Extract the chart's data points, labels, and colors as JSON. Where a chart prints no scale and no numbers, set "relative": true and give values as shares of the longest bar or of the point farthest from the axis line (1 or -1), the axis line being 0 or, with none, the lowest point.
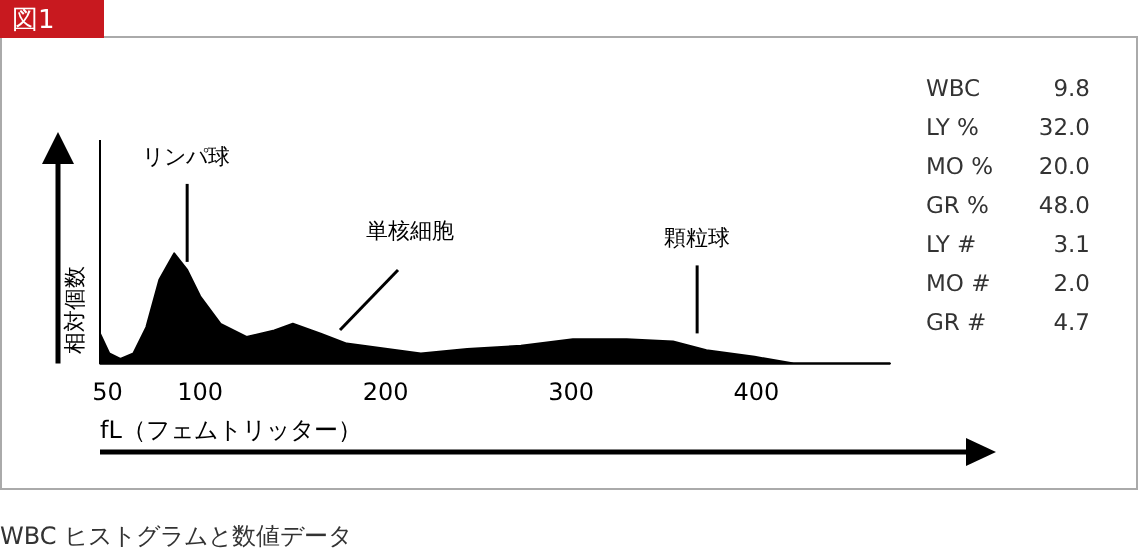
{
  "chart_data": {
    "type": "area",
    "relative": true,
    "title": "図1",
    "xlabel": "fL（フェムトリッター）",
    "ylabel": "相対個数",
    "xlim": [
      46,
      472
    ],
    "xticks": [
      50,
      100,
      200,
      300,
      400
    ],
    "x": [
      46,
      51,
      57,
      64,
      71,
      78,
      86,
      93,
      100,
      111,
      125,
      140,
      150,
      165,
      179,
      201,
      219,
      244,
      273,
      301,
      330,
      355,
      373,
      399,
      420,
      472
    ],
    "series": [
      {
        "color": "#000000",
        "values": [
          0.27,
          0.09,
          0.04,
          0.09,
          0.33,
          0.76,
          1,
          0.85,
          0.61,
          0.36,
          0.24,
          0.3,
          0.36,
          0.27,
          0.18,
          0.13,
          0.09,
          0.13,
          0.16,
          0.22,
          0.22,
          0.2,
          0.12,
          0.06,
          0,
          0
        ]
      }
    ],
    "annotations": [
      {
        "text": "リンパ球",
        "x": 93,
        "y": 0.85
      },
      {
        "text": "顆粒球",
        "x": 368,
        "y": 0.2
      },
      "単核細胞",
      "WBC",
      "9.8",
      "LY %",
      "32.0",
      "MO %",
      "20.0",
      "GR %",
      "48.0",
      "LY #",
      "3.1",
      "MO #",
      "2.0",
      "GR #",
      "4.7",
      "WBC ヒストグラムと数値データ"
    ]
  }
}
